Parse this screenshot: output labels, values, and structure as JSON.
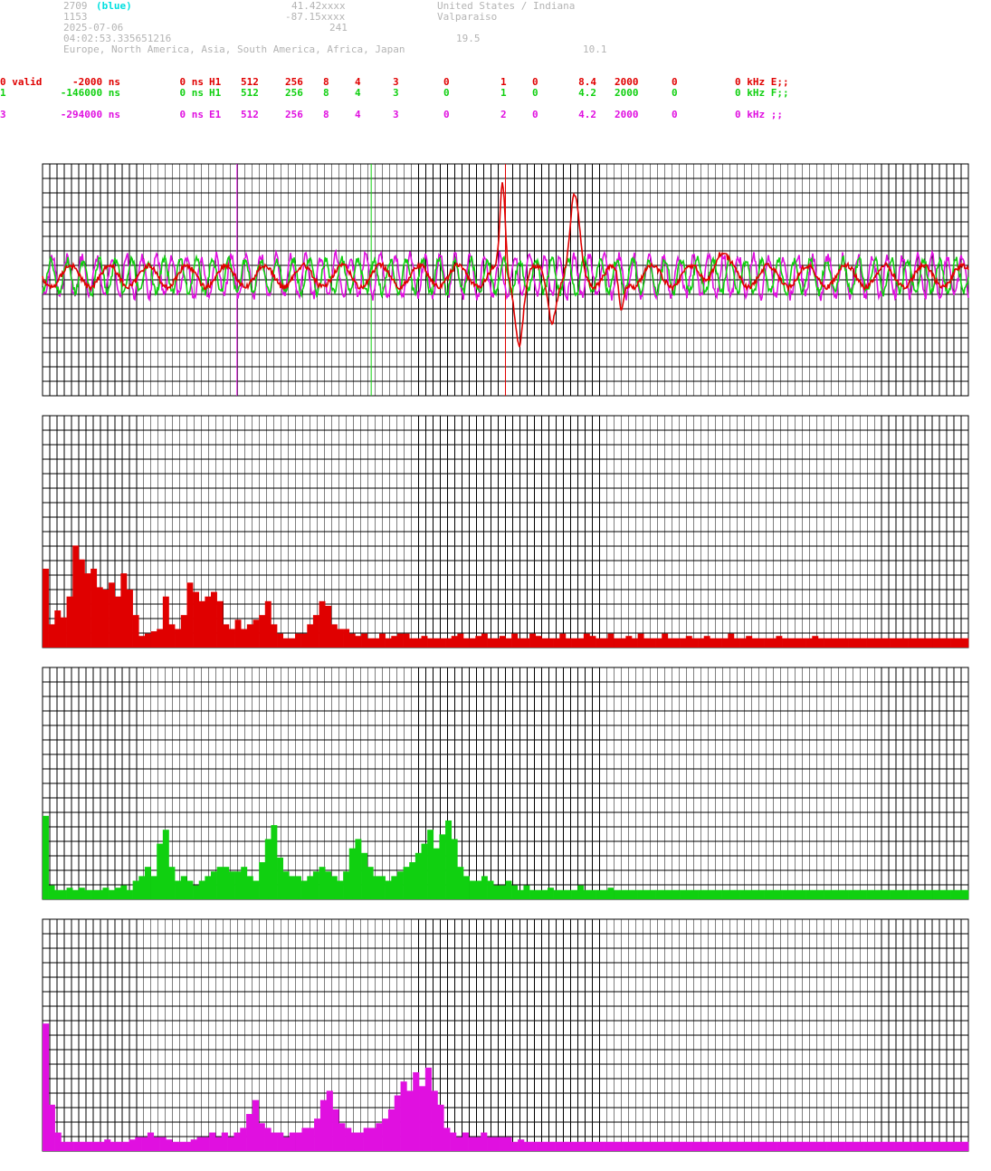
{
  "header": {
    "id": "2709",
    "color_tag": "(blue)",
    "lat": "41.42xxxx",
    "country": "United States / Indiana",
    "station_no": "1153",
    "lon": "-87.15xxxx",
    "city": "Valparaiso",
    "date": "2025-07-06",
    "alt": "241",
    "time": "04:02:53.335651216",
    "value_a": "19.5",
    "regions": "Europe, North America, Asia, South America, Africa, Japan",
    "value_b": "10.1"
  },
  "channels": [
    {
      "label": "0 valid",
      "offset": "-2000 ns",
      "delay": "0 ns",
      "type": "H1",
      "n1": "512",
      "n2": "256",
      "n3": "8",
      "n4": "4",
      "n5": "3",
      "n6": "0",
      "n7": "1",
      "n8": "0",
      "freq": "8.4",
      "n9": "2000",
      "n10": "0",
      "tail": "0 kHz E;;",
      "color": "#e00000"
    },
    {
      "label": "1",
      "offset": "-146000 ns",
      "delay": "0 ns",
      "type": "H1",
      "n1": "512",
      "n2": "256",
      "n3": "8",
      "n4": "4",
      "n5": "3",
      "n6": "0",
      "n7": "1",
      "n8": "0",
      "freq": "4.2",
      "n9": "2000",
      "n10": "0",
      "tail": "0 kHz F;;",
      "color": "#10d010"
    },
    {
      "label": "3",
      "offset": "-294000 ns",
      "delay": "0 ns",
      "type": "E1",
      "n1": "512",
      "n2": "256",
      "n3": "8",
      "n4": "4",
      "n5": "3",
      "n6": "0",
      "n7": "2",
      "n8": "0",
      "freq": "4.2",
      "n9": "2000",
      "n10": "0",
      "tail": "0 kHz ;;",
      "color": "#e010e0"
    }
  ],
  "chart_data": [
    {
      "type": "line",
      "series": [
        {
          "color": "#e00000",
          "marker_index": 0.5,
          "peak_events": [
            0.5,
            0.57
          ]
        },
        {
          "color": "#10d010",
          "marker_index": 0.355
        },
        {
          "color": "#e010e0",
          "marker_index": 0.21
        }
      ],
      "grid": true
    },
    {
      "type": "bar",
      "color": "#e00000",
      "values": [
        0.34,
        0.1,
        0.16,
        0.13,
        0.22,
        0.44,
        0.38,
        0.32,
        0.34,
        0.26,
        0.25,
        0.28,
        0.22,
        0.32,
        0.25,
        0.14,
        0.05,
        0.06,
        0.07,
        0.08,
        0.22,
        0.1,
        0.08,
        0.14,
        0.28,
        0.24,
        0.2,
        0.22,
        0.24,
        0.2,
        0.1,
        0.08,
        0.12,
        0.08,
        0.1,
        0.12,
        0.14,
        0.2,
        0.1,
        0.06,
        0.04,
        0.04,
        0.06,
        0.06,
        0.1,
        0.14,
        0.2,
        0.18,
        0.1,
        0.08,
        0.08,
        0.06,
        0.05,
        0.06,
        0.04,
        0.04,
        0.06,
        0.04,
        0.05,
        0.06,
        0.06,
        0.04,
        0.04,
        0.05,
        0.04,
        0.04,
        0.04,
        0.04,
        0.05,
        0.06,
        0.04,
        0.04,
        0.05,
        0.06,
        0.04,
        0.04,
        0.05,
        0.04,
        0.06,
        0.04,
        0.04,
        0.06,
        0.05,
        0.04,
        0.04,
        0.04,
        0.06,
        0.04,
        0.04,
        0.04,
        0.06,
        0.05,
        0.04,
        0.04,
        0.06,
        0.04,
        0.04,
        0.05,
        0.04,
        0.06,
        0.04,
        0.04,
        0.04,
        0.06,
        0.04,
        0.04,
        0.04,
        0.05,
        0.04,
        0.04,
        0.05,
        0.04,
        0.04,
        0.04,
        0.06,
        0.04,
        0.04,
        0.05,
        0.04,
        0.04,
        0.04,
        0.04,
        0.05,
        0.04,
        0.04,
        0.04,
        0.04,
        0.04,
        0.05,
        0.04,
        0.04,
        0.04,
        0.04,
        0.04,
        0.04,
        0.04,
        0.04,
        0.04,
        0.04,
        0.04,
        0.04,
        0.04,
        0.04,
        0.04,
        0.04,
        0.04,
        0.04,
        0.04,
        0.04,
        0.04,
        0.04,
        0.04,
        0.04,
        0.04
      ],
      "grid": true
    },
    {
      "type": "bar",
      "color": "#10d010",
      "values": [
        0.36,
        0.06,
        0.04,
        0.04,
        0.05,
        0.04,
        0.05,
        0.04,
        0.04,
        0.04,
        0.05,
        0.04,
        0.05,
        0.06,
        0.04,
        0.08,
        0.1,
        0.14,
        0.1,
        0.24,
        0.3,
        0.14,
        0.08,
        0.1,
        0.08,
        0.06,
        0.08,
        0.1,
        0.12,
        0.14,
        0.14,
        0.12,
        0.12,
        0.14,
        0.1,
        0.08,
        0.16,
        0.26,
        0.32,
        0.18,
        0.12,
        0.1,
        0.1,
        0.08,
        0.1,
        0.12,
        0.14,
        0.12,
        0.1,
        0.08,
        0.12,
        0.22,
        0.26,
        0.2,
        0.14,
        0.1,
        0.1,
        0.08,
        0.1,
        0.12,
        0.14,
        0.16,
        0.2,
        0.24,
        0.3,
        0.22,
        0.28,
        0.34,
        0.26,
        0.14,
        0.1,
        0.08,
        0.08,
        0.1,
        0.08,
        0.06,
        0.06,
        0.08,
        0.06,
        0.04,
        0.06,
        0.04,
        0.04,
        0.04,
        0.05,
        0.04,
        0.04,
        0.04,
        0.04,
        0.06,
        0.04,
        0.04,
        0.04,
        0.04,
        0.05,
        0.04,
        0.04,
        0.04,
        0.04,
        0.04,
        0.04,
        0.04,
        0.04,
        0.04,
        0.04,
        0.04,
        0.04,
        0.04,
        0.04,
        0.04,
        0.04,
        0.04,
        0.04,
        0.04,
        0.04,
        0.04,
        0.04,
        0.04,
        0.04,
        0.04,
        0.04,
        0.04,
        0.04,
        0.04,
        0.04,
        0.04,
        0.04,
        0.04,
        0.04,
        0.04,
        0.04,
        0.04,
        0.04,
        0.04,
        0.04,
        0.04,
        0.04,
        0.04,
        0.04,
        0.04,
        0.04,
        0.04,
        0.04,
        0.04,
        0.04,
        0.04,
        0.04,
        0.04,
        0.04,
        0.04,
        0.04,
        0.04,
        0.04,
        0.04
      ],
      "grid": true
    },
    {
      "type": "bar",
      "color": "#e010e0",
      "values": [
        0.55,
        0.2,
        0.08,
        0.04,
        0.04,
        0.04,
        0.04,
        0.04,
        0.04,
        0.04,
        0.05,
        0.04,
        0.04,
        0.04,
        0.05,
        0.06,
        0.06,
        0.08,
        0.06,
        0.06,
        0.05,
        0.04,
        0.04,
        0.04,
        0.05,
        0.06,
        0.06,
        0.08,
        0.06,
        0.08,
        0.06,
        0.08,
        0.1,
        0.16,
        0.22,
        0.12,
        0.1,
        0.08,
        0.08,
        0.06,
        0.08,
        0.08,
        0.1,
        0.1,
        0.14,
        0.22,
        0.26,
        0.18,
        0.12,
        0.1,
        0.08,
        0.08,
        0.1,
        0.1,
        0.12,
        0.14,
        0.18,
        0.24,
        0.3,
        0.26,
        0.34,
        0.28,
        0.36,
        0.26,
        0.2,
        0.1,
        0.08,
        0.06,
        0.08,
        0.06,
        0.06,
        0.08,
        0.06,
        0.06,
        0.06,
        0.06,
        0.04,
        0.05,
        0.04,
        0.04,
        0.04,
        0.04,
        0.04,
        0.04,
        0.04,
        0.04,
        0.04,
        0.04,
        0.04,
        0.04,
        0.04,
        0.04,
        0.04,
        0.04,
        0.04,
        0.04,
        0.04,
        0.04,
        0.04,
        0.04,
        0.04,
        0.04,
        0.04,
        0.04,
        0.04,
        0.04,
        0.04,
        0.04,
        0.04,
        0.04,
        0.04,
        0.04,
        0.04,
        0.04,
        0.04,
        0.04,
        0.04,
        0.04,
        0.04,
        0.04,
        0.04,
        0.04,
        0.04,
        0.04,
        0.04,
        0.04,
        0.04,
        0.04,
        0.04,
        0.04,
        0.04,
        0.04,
        0.04,
        0.04,
        0.04,
        0.04,
        0.04,
        0.04,
        0.04,
        0.04,
        0.04,
        0.04,
        0.04,
        0.04,
        0.04,
        0.04,
        0.04,
        0.04,
        0.04,
        0.04
      ],
      "grid": true
    }
  ]
}
